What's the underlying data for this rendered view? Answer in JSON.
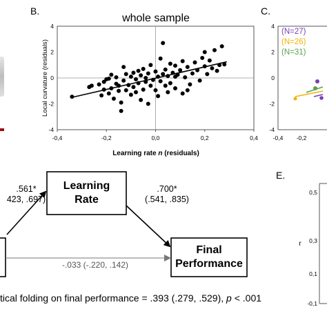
{
  "panel_b": {
    "letter": "B.",
    "chart_data": {
      "type": "scatter",
      "title": "whole sample",
      "xlabel": "Learning rate n (residuals)",
      "xlabel_prefix": "Learning rate ",
      "xlabel_italic": "n",
      "xlabel_suffix": " (residuals)",
      "ylabel": "Local curvature (residuals)",
      "xlim": [
        -0.4,
        0.4
      ],
      "ylim": [
        -4,
        4
      ],
      "xticks": [
        "-0,4",
        "-0,2",
        "0,0",
        "0,2",
        "0,4"
      ],
      "yticks": [
        "4",
        "2",
        "0",
        "-2",
        "-4"
      ],
      "trend": {
        "x": [
          -0.34,
          0.29
        ],
        "y": [
          -1.5,
          1.25
        ]
      },
      "points": [
        [
          -0.34,
          -1.45
        ],
        [
          -0.27,
          -0.7
        ],
        [
          -0.26,
          -0.6
        ],
        [
          -0.23,
          -0.5
        ],
        [
          -0.21,
          -0.3
        ],
        [
          -0.21,
          -0.9
        ],
        [
          -0.2,
          -0.1
        ],
        [
          -0.19,
          -1.2
        ],
        [
          -0.18,
          -0.8
        ],
        [
          -0.18,
          0.25
        ],
        [
          -0.17,
          -1.6
        ],
        [
          -0.16,
          -0.45
        ],
        [
          -0.16,
          0.05
        ],
        [
          -0.15,
          -0.6
        ],
        [
          -0.15,
          -1.0
        ],
        [
          -0.14,
          -2.55
        ],
        [
          -0.14,
          -1.9
        ],
        [
          -0.13,
          -0.2
        ],
        [
          -0.13,
          0.85
        ],
        [
          -0.12,
          -0.95
        ],
        [
          -0.12,
          0.3
        ],
        [
          -0.11,
          -0.55
        ],
        [
          -0.1,
          0.1
        ],
        [
          -0.1,
          -1.3
        ],
        [
          -0.09,
          -0.7
        ],
        [
          -0.09,
          0.4
        ],
        [
          -0.08,
          -0.1
        ],
        [
          -0.08,
          -1.1
        ],
        [
          -0.07,
          0.55
        ],
        [
          -0.07,
          -0.4
        ],
        [
          -0.06,
          0.2
        ],
        [
          -0.06,
          -1.7
        ],
        [
          -0.05,
          -0.9
        ],
        [
          -0.05,
          0.7
        ],
        [
          -0.04,
          -0.3
        ],
        [
          -0.04,
          0.0
        ],
        [
          -0.03,
          -2.0
        ],
        [
          -0.03,
          0.35
        ],
        [
          -0.02,
          -0.6
        ],
        [
          -0.02,
          1.0
        ],
        [
          -0.01,
          -0.15
        ],
        [
          0.0,
          0.5
        ],
        [
          0.0,
          -0.95
        ],
        [
          0.01,
          0.1
        ],
        [
          0.01,
          -1.4
        ],
        [
          0.02,
          1.5
        ],
        [
          0.02,
          -0.25
        ],
        [
          0.03,
          0.3
        ],
        [
          0.03,
          2.7
        ],
        [
          0.04,
          -0.6
        ],
        [
          0.04,
          0.65
        ],
        [
          0.05,
          -1.1
        ],
        [
          0.05,
          0.15
        ],
        [
          0.06,
          1.1
        ],
        [
          0.06,
          -0.4
        ],
        [
          0.07,
          0.4
        ],
        [
          0.08,
          0.95
        ],
        [
          0.08,
          -0.8
        ],
        [
          0.09,
          0.25
        ],
        [
          0.1,
          0.6
        ],
        [
          0.11,
          -1.2
        ],
        [
          0.11,
          1.3
        ],
        [
          0.12,
          0.05
        ],
        [
          0.13,
          0.85
        ],
        [
          0.14,
          -0.5
        ],
        [
          0.15,
          0.35
        ],
        [
          0.16,
          1.2
        ],
        [
          0.17,
          0.6
        ],
        [
          0.18,
          -0.2
        ],
        [
          0.19,
          1.55
        ],
        [
          0.2,
          2.0
        ],
        [
          0.2,
          0.9
        ],
        [
          0.21,
          0.3
        ],
        [
          0.22,
          1.35
        ],
        [
          0.23,
          0.75
        ],
        [
          0.24,
          2.15
        ],
        [
          0.25,
          0.55
        ],
        [
          0.26,
          1.0
        ],
        [
          0.27,
          2.45
        ],
        [
          0.28,
          1.05
        ],
        [
          -0.22,
          -1.35
        ],
        [
          -0.19,
          -0.05
        ],
        [
          0.08,
          0.1
        ],
        [
          0.13,
          -0.95
        ]
      ]
    }
  },
  "panel_c": {
    "letter": "C.",
    "xticks": [
      "-0,4",
      "-0,2"
    ],
    "yticks": [
      "4",
      "2",
      "0",
      "-2",
      "-4"
    ],
    "legend": [
      {
        "label": "(N=27)",
        "color": "#7a3fb5"
      },
      {
        "label": "(N=26)",
        "color": "#f0b400"
      },
      {
        "label": "(N=31)",
        "color": "#5aa24a"
      }
    ]
  },
  "panel_e": {
    "letter": "E.",
    "ylabel": "r",
    "yticks": [
      "0,5",
      "0,3",
      "0,1",
      "-0,1"
    ]
  },
  "mediation": {
    "learning_rate_box": {
      "line1": "Learning",
      "line2": "Rate"
    },
    "final_perf_box": {
      "line1": "Final",
      "line2": "Performance"
    },
    "path_a": {
      "line1": ".561*",
      "line2": "423, .697)"
    },
    "path_b": {
      "line1": ".700*",
      "line2": "(.541, .835)"
    },
    "path_c_prime": ".033 (-.220, .142)",
    "path_c_prime_full": "-.033 (-.220, .142)",
    "caption_start": "tical folding on final performance = .393 (.279, .529), ",
    "caption_p": "p",
    "caption_end": " < .001"
  }
}
